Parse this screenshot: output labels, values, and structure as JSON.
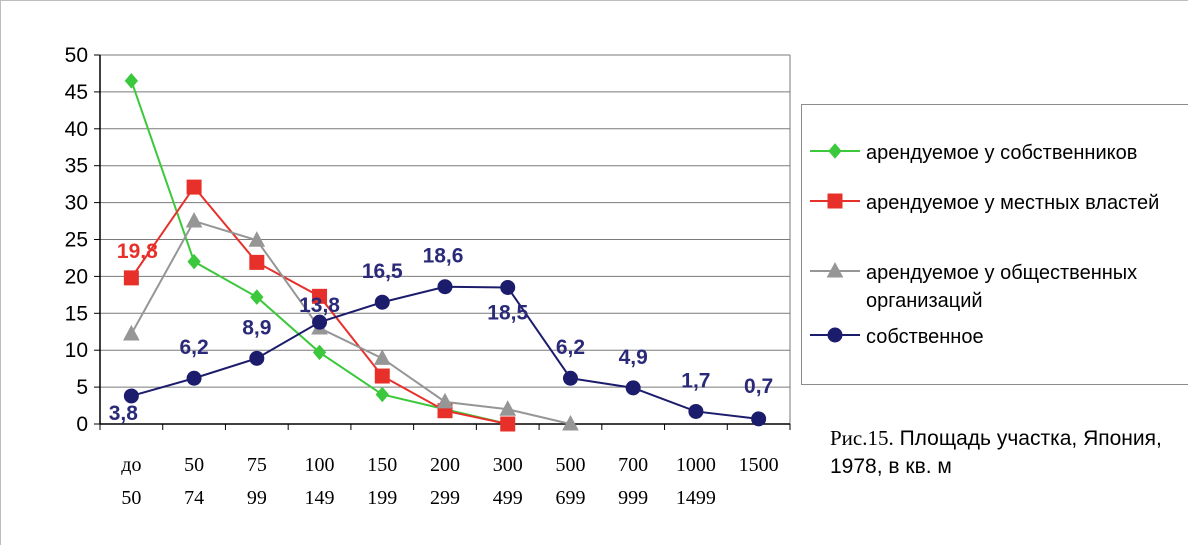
{
  "chart_data": {
    "type": "line",
    "categories": [
      [
        "до",
        "50"
      ],
      [
        "50",
        "74"
      ],
      [
        "75",
        "99"
      ],
      [
        "100",
        "149"
      ],
      [
        "150",
        "199"
      ],
      [
        "200",
        "299"
      ],
      [
        "300",
        "499"
      ],
      [
        "500",
        "699"
      ],
      [
        "700",
        "999"
      ],
      [
        "1000",
        "1499"
      ],
      [
        "1500",
        ""
      ]
    ],
    "yticks": [
      "0",
      "5",
      "10",
      "15",
      "20",
      "25",
      "30",
      "35",
      "40",
      "45",
      "50"
    ],
    "ylim": [
      0,
      50
    ],
    "grid": true,
    "legend_position": "right",
    "series": [
      {
        "name": "арендуемое у собственников",
        "color": "#3cc83c",
        "marker": "diamond",
        "values": [
          46.5,
          22,
          17.2,
          9.7,
          4,
          2,
          0,
          null,
          null,
          null,
          null
        ],
        "labels": []
      },
      {
        "name": "арендуемое у местных властей",
        "color": "#e8302a",
        "marker": "square",
        "values": [
          19.8,
          32.1,
          21.9,
          17.3,
          6.5,
          1.8,
          0,
          null,
          null,
          null,
          null
        ],
        "labels": [
          {
            "index": 0,
            "text": "19,8"
          }
        ]
      },
      {
        "name": "арендуемое у общественных организаций",
        "color": "#969696",
        "marker": "triangle",
        "values": [
          12.2,
          27.5,
          24.9,
          13,
          8.9,
          3,
          2,
          0,
          null,
          null,
          null
        ],
        "labels": []
      },
      {
        "name": "собственное",
        "color": "#1c1c6c",
        "marker": "circle",
        "values": [
          3.8,
          6.2,
          8.9,
          13.8,
          16.5,
          18.6,
          18.5,
          6.2,
          4.9,
          1.7,
          0.7
        ],
        "labels": [
          {
            "index": 0,
            "text": "3,8"
          },
          {
            "index": 1,
            "text": "6,2"
          },
          {
            "index": 2,
            "text": "8,9"
          },
          {
            "index": 3,
            "text": "13,8"
          },
          {
            "index": 4,
            "text": "16,5"
          },
          {
            "index": 5,
            "text": "18,6"
          },
          {
            "index": 6,
            "text": "18,5"
          },
          {
            "index": 7,
            "text": "6,2"
          },
          {
            "index": 8,
            "text": "4,9"
          },
          {
            "index": 9,
            "text": "1,7"
          },
          {
            "index": 10,
            "text": "0,7"
          }
        ]
      }
    ],
    "legend": {
      "items": [
        {
          "text": "арендуемое у собственников"
        },
        {
          "text": "арендуемое у местных властей"
        },
        {
          "text": "арендуемое у общественных организаций"
        },
        {
          "text": "собственное"
        }
      ]
    },
    "caption": {
      "prefix": "Рис.15.",
      "text": " Площадь участка, Япония, 1978, в кв. м"
    }
  }
}
